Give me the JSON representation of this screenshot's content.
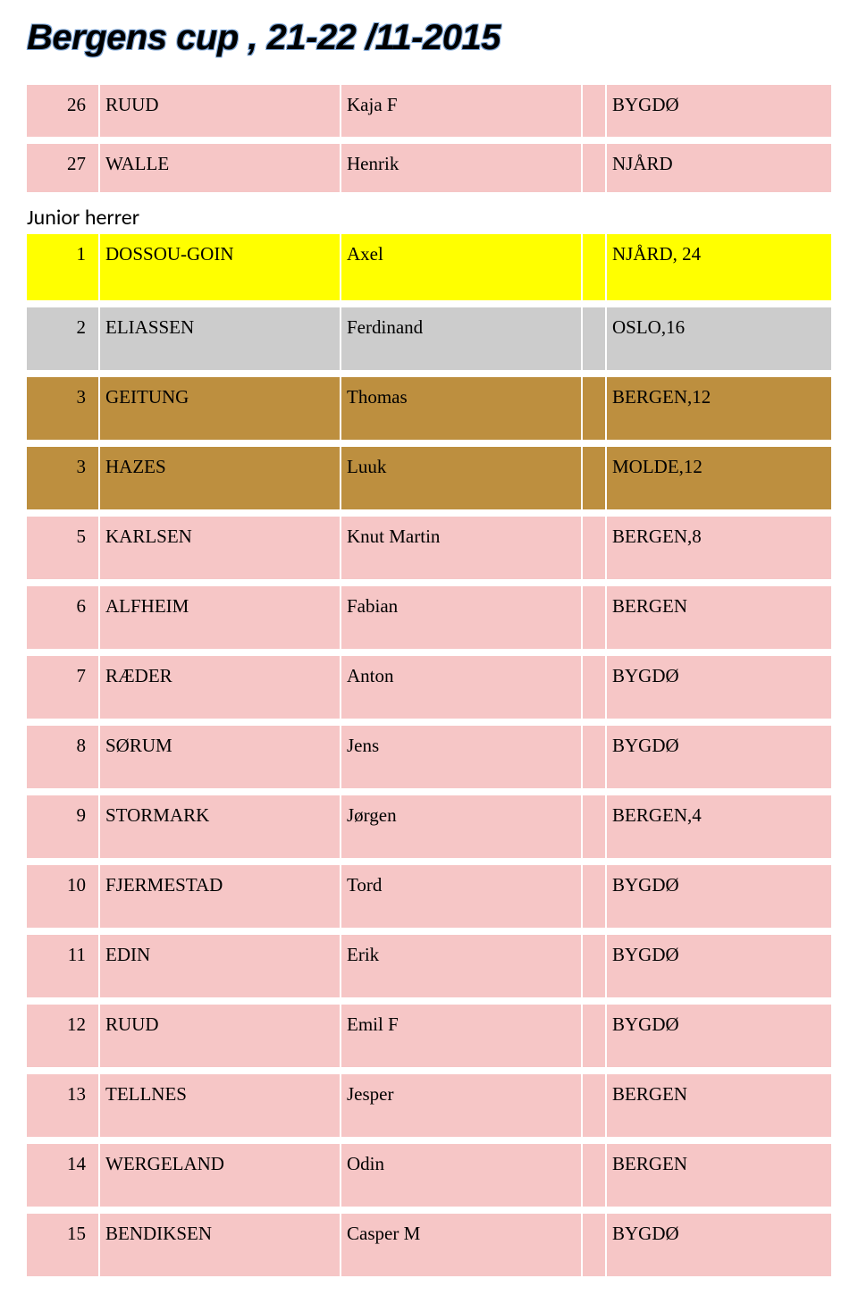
{
  "title": "Bergens cup , 21-22 /11-2015",
  "sections": [
    {
      "heading": null,
      "rows": [
        {
          "rank": "26",
          "last": "RUUD",
          "first": "Kaja F",
          "club": "BYGDØ",
          "color": "pink"
        },
        {
          "rank": "27",
          "last": "WALLE",
          "first": "Henrik",
          "club": "NJÅRD",
          "color": "pink"
        }
      ]
    },
    {
      "heading": "Junior herrer",
      "rows": [
        {
          "rank": "1",
          "last": "DOSSOU-GOIN",
          "first": "Axel",
          "club": "NJÅRD, 24",
          "color": "yellow"
        },
        {
          "rank": "2",
          "last": "ELIASSEN",
          "first": "Ferdinand",
          "club": "OSLO,16",
          "color": "grey"
        },
        {
          "rank": "3",
          "last": "GEITUNG",
          "first": "Thomas",
          "club": "BERGEN,12",
          "color": "brown"
        },
        {
          "rank": "3",
          "last": "HAZES",
          "first": "Luuk",
          "club": "MOLDE,12",
          "color": "brown"
        },
        {
          "rank": "5",
          "last": "KARLSEN",
          "first": "Knut Martin",
          "club": "BERGEN,8",
          "color": "pink"
        },
        {
          "rank": "6",
          "last": "ALFHEIM",
          "first": "Fabian",
          "club": "BERGEN",
          "color": "pink"
        },
        {
          "rank": "7",
          "last": "RÆDER",
          "first": "Anton",
          "club": "BYGDØ",
          "color": "pink"
        },
        {
          "rank": "8",
          "last": "SØRUM",
          "first": "Jens",
          "club": "BYGDØ",
          "color": "pink"
        },
        {
          "rank": "9",
          "last": "STORMARK",
          "first": "Jørgen",
          "club": "BERGEN,4",
          "color": "pink"
        },
        {
          "rank": "10",
          "last": "FJERMESTAD",
          "first": "Tord",
          "club": "BYGDØ",
          "color": "pink"
        },
        {
          "rank": "11",
          "last": "EDIN",
          "first": "Erik",
          "club": "BYGDØ",
          "color": "pink"
        },
        {
          "rank": "12",
          "last": "RUUD",
          "first": "Emil F",
          "club": "BYGDØ",
          "color": "pink"
        },
        {
          "rank": "13",
          "last": "TELLNES",
          "first": "Jesper",
          "club": "BERGEN",
          "color": "pink"
        },
        {
          "rank": "14",
          "last": "WERGELAND",
          "first": "Odin",
          "club": "BERGEN",
          "color": "pink"
        },
        {
          "rank": "15",
          "last": "BENDIKSEN",
          "first": "Casper M",
          "club": "BYGDØ",
          "color": "pink"
        }
      ]
    }
  ],
  "colors": {
    "pink": "#f6c6c6",
    "yellow": "#ffff00",
    "grey": "#cccccc",
    "brown": "#bd8f3f",
    "page_bg": "#ffffff"
  },
  "fonts": {
    "title_size_pt": 30,
    "body_size_pt": 16,
    "heading_size_pt": 18
  }
}
